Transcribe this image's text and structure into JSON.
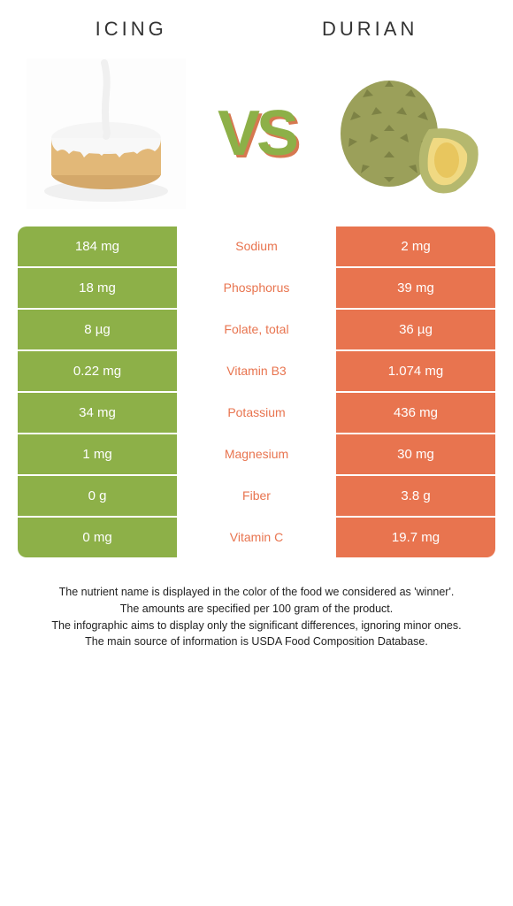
{
  "titles": {
    "left": "Icing",
    "right": "Durian"
  },
  "vs": "VS",
  "colors": {
    "left": "#8db048",
    "right": "#e8744f",
    "vs_text": "#8db048",
    "vs_shadow": "#d67850",
    "bg": "#ffffff"
  },
  "rows": [
    {
      "left": "184 mg",
      "nutrient": "Sodium",
      "right": "2 mg",
      "winner": "right"
    },
    {
      "left": "18 mg",
      "nutrient": "Phosphorus",
      "right": "39 mg",
      "winner": "right"
    },
    {
      "left": "8 µg",
      "nutrient": "Folate, total",
      "right": "36 µg",
      "winner": "right"
    },
    {
      "left": "0.22 mg",
      "nutrient": "Vitamin B3",
      "right": "1.074 mg",
      "winner": "right"
    },
    {
      "left": "34 mg",
      "nutrient": "Potassium",
      "right": "436 mg",
      "winner": "right"
    },
    {
      "left": "1 mg",
      "nutrient": "Magnesium",
      "right": "30 mg",
      "winner": "right"
    },
    {
      "left": "0 g",
      "nutrient": "Fiber",
      "right": "3.8 g",
      "winner": "right"
    },
    {
      "left": "0 mg",
      "nutrient": "Vitamin C",
      "right": "19.7 mg",
      "winner": "right"
    }
  ],
  "footer": [
    "The nutrient name is displayed in the color of the food we considered as 'winner'.",
    "The amounts are specified per 100 gram of the product.",
    "The infographic aims to display only the significant differences, ignoring minor ones.",
    "The main source of information is USDA Food Composition Database."
  ]
}
